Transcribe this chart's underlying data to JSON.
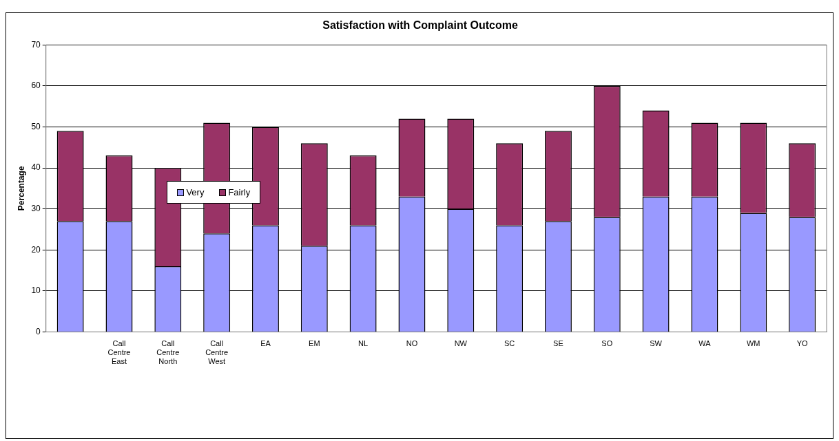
{
  "chart_data": {
    "type": "bar",
    "title": "Satisfaction with Complaint Outcome",
    "ylabel": "Percentage",
    "categories": [
      null,
      "Call Centre East",
      "Call Centre North",
      "Call Centre West",
      "EA",
      "EM",
      "NL",
      "NO",
      "NW",
      "SC",
      "SE",
      "SO",
      "SW",
      "WA",
      "WM",
      "YO"
    ],
    "series": [
      {
        "name": "Very",
        "color": "#9999ff",
        "values": [
          27,
          27,
          16,
          24,
          26,
          21,
          26,
          33,
          30,
          26,
          27,
          28,
          33,
          33,
          29,
          28
        ]
      },
      {
        "name": "Fairly",
        "color": "#993366",
        "values": [
          22,
          16,
          24,
          27,
          24,
          25,
          17,
          19,
          22,
          20,
          22,
          32,
          21,
          18,
          22,
          18
        ]
      }
    ],
    "stacked": true,
    "ylim": [
      0,
      70
    ],
    "yticks": [
      0,
      10,
      20,
      30,
      40,
      50,
      60,
      70
    ],
    "grid": "y",
    "legend": "left"
  }
}
